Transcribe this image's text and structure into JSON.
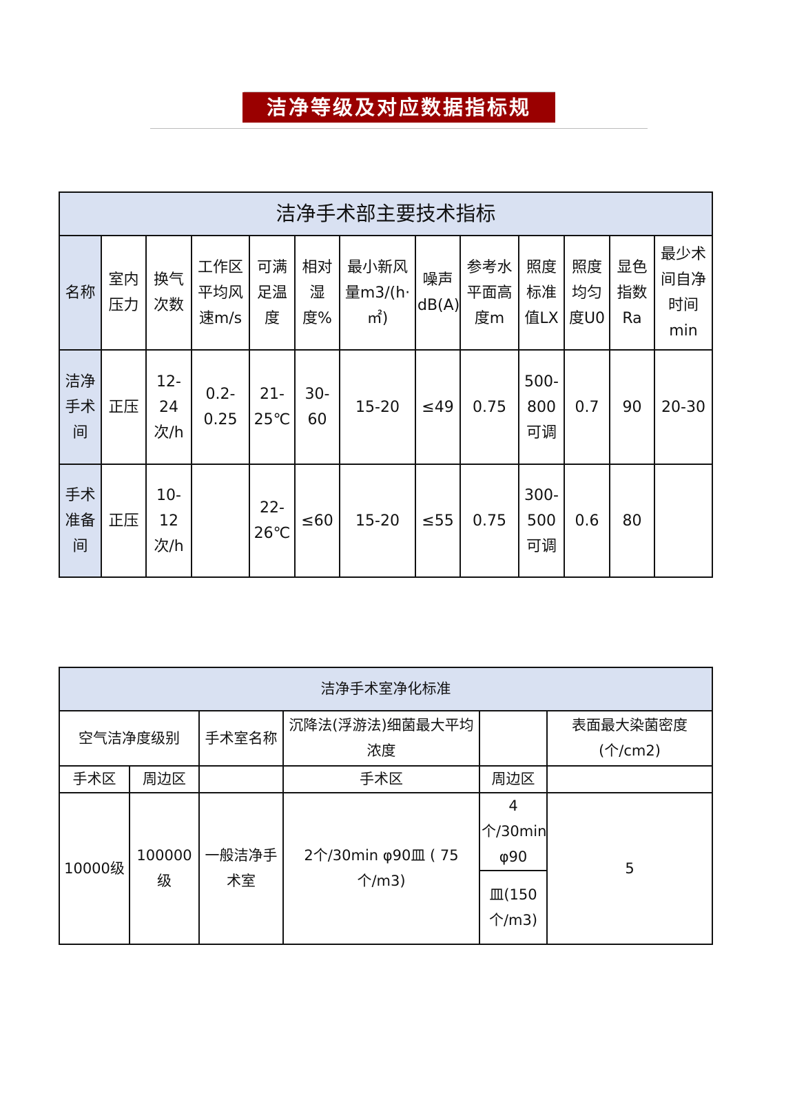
{
  "banner_title": "洁净等级及对应数据指标规",
  "table1": {
    "title": "洁净手术部主要技术指标",
    "headers": [
      "名称",
      "室内压力",
      "换气次数",
      "工作区平均风速m/s",
      "可满足温度",
      "相对湿度%",
      "最小新风量m3/(h·㎡)",
      "噪声dB(A)",
      "参考水平面高度m",
      "照度标准值LX",
      "照度均匀度U0",
      "显色指数Ra",
      "最少术间自净时间min"
    ],
    "rows": [
      [
        "洁净手术间",
        "正压",
        "12-24次/h",
        "0.2-0.25",
        "21-25℃",
        "30-60",
        "15-20",
        "≤49",
        "0.75",
        "500-800可调",
        "0.7",
        "90",
        "20-30"
      ],
      [
        "手术准备间",
        "正压",
        "10-12次/h",
        "",
        "22-26℃",
        "≤60",
        "15-20",
        "≤55",
        "0.75",
        "300-500可调",
        "0.6",
        "80",
        ""
      ]
    ]
  },
  "table2": {
    "title": "洁净手术室净化标准",
    "headers": [
      "空气洁净度级别",
      "手术室名称",
      "沉降法(浮游法)细菌最大平均浓度",
      "",
      "表面最大染菌密度(个/cm2)"
    ],
    "subheaders": [
      "手术区",
      "周边区",
      "",
      "手术区",
      "周边区",
      ""
    ],
    "row": {
      "operating_class": "10000级",
      "surrounding_class": "100000级",
      "room_name": "一般洁净手术室",
      "operating_bacteria": "2个/30min φ90皿 ( 75 个/m3)",
      "surrounding_bacteria_1": "4个/30min φ90",
      "surrounding_bacteria_2": "皿(150个/m3)",
      "surface_density": "5"
    }
  },
  "colors": {
    "banner": "#9a0000",
    "header_fill": "#d9e1f2"
  }
}
